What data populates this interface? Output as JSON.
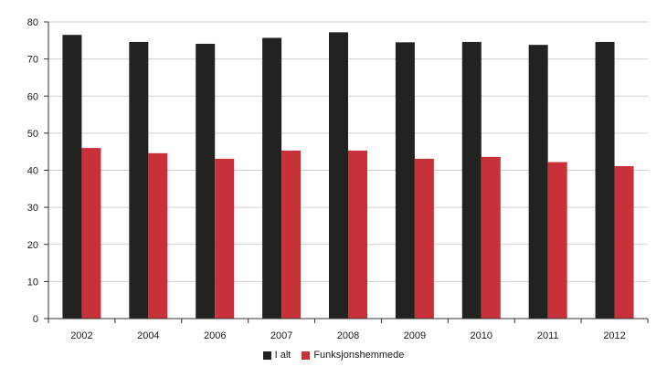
{
  "chart_data": {
    "type": "bar",
    "categories": [
      "2002",
      "2004",
      "2006",
      "2007",
      "2008",
      "2009",
      "2010",
      "2011",
      "2012"
    ],
    "series": [
      {
        "name": "I alt",
        "color": "#222220",
        "values": [
          76.5,
          74.6,
          74.1,
          75.7,
          77.2,
          74.5,
          74.6,
          73.8,
          74.6
        ]
      },
      {
        "name": "Funksjonshemmede",
        "color": "#c8303a",
        "values": [
          46.0,
          44.6,
          43.1,
          45.3,
          45.3,
          43.1,
          43.6,
          42.2,
          41.1
        ]
      }
    ],
    "title": "",
    "xlabel": "",
    "ylabel": "",
    "ylim": [
      0,
      80
    ],
    "yticks": [
      0,
      10,
      20,
      30,
      40,
      50,
      60,
      70,
      80
    ],
    "grid": true,
    "legend_position": "bottom"
  }
}
